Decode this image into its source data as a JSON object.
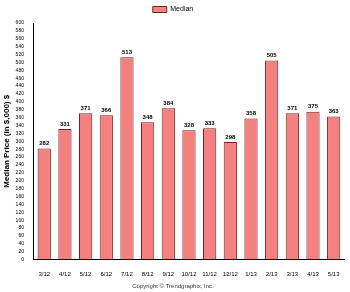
{
  "chart_data": {
    "type": "bar",
    "y_label": "Median Price (in $,000) $",
    "annotations": [
      "Copyright © Trendgraphix, Inc."
    ],
    "categories": [
      "3/12",
      "4/12",
      "5/12",
      "6/12",
      "7/12",
      "8/12",
      "9/12",
      "10/12",
      "11/12",
      "12/12",
      "1/13",
      "2/13",
      "3/13",
      "4/13",
      "5/13"
    ],
    "series": [
      {
        "name": "Median",
        "color": "#f4817f",
        "values": [
          282,
          331,
          371,
          366,
          513,
          348,
          384,
          328,
          333,
          298,
          358,
          505,
          371,
          375,
          363
        ]
      }
    ],
    "ylim": [
      0,
      600
    ],
    "yticks": [
      0,
      20,
      40,
      60,
      80,
      100,
      120,
      140,
      160,
      180,
      200,
      220,
      240,
      260,
      280,
      300,
      320,
      340,
      360,
      380,
      400,
      420,
      440,
      460,
      480,
      500,
      520,
      540,
      560,
      580,
      600
    ],
    "grid": false,
    "legend": "top",
    "data_labels": true
  }
}
